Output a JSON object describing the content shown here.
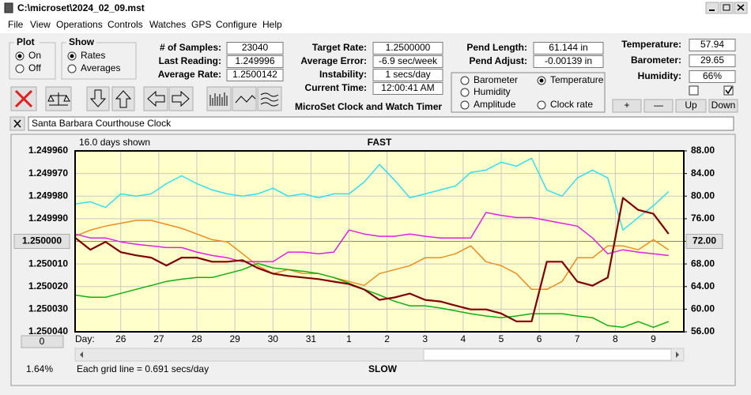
{
  "window": {
    "title": "C:\\microset\\2024_02_09.mst",
    "menu": [
      "File",
      "View",
      "Operations",
      "Controls",
      "Watches",
      "GPS",
      "Configure",
      "Help"
    ]
  },
  "controls": {
    "plot": {
      "title": "Plot",
      "options": [
        "On",
        "Off"
      ],
      "selected": 0
    },
    "show": {
      "title": "Show",
      "options": [
        "Rates",
        "Averages"
      ],
      "selected": 0
    },
    "fields": [
      {
        "label": "# of Samples:",
        "value": "23040"
      },
      {
        "label": "Last Reading:",
        "value": "1.249996"
      },
      {
        "label": "Average Rate:",
        "value": "1.2500142"
      },
      {
        "label": "Target Rate:",
        "value": "1.2500000"
      },
      {
        "label": "Average Error:",
        "value": "-6.9 sec/week"
      },
      {
        "label": "Instability:",
        "value": "1 secs/day"
      },
      {
        "label": "Current Time:",
        "value": "12:00:41 AM"
      },
      {
        "label": "Pend Length:",
        "value": "61.144 in"
      },
      {
        "label": "Pend Adjust:",
        "value": "-0.00139 in"
      },
      {
        "label": "Temperature:",
        "value": "57.94"
      },
      {
        "label": "Barometer:",
        "value": "29.65"
      },
      {
        "label": "Humidity:",
        "value": "66%"
      }
    ],
    "checkboxes": [
      false,
      true
    ],
    "buttons": [
      "+",
      "—",
      "Up",
      "Down"
    ],
    "app_title": "MicroSet Clock and Watch Timer",
    "clock_name": "Santa Barbara Courthouse Clock"
  },
  "chart_data": {
    "type": "line",
    "days_shown": "16.0 days shown",
    "top_label": "FAST",
    "bottom_label": "SLOW",
    "x_label": "Day:",
    "grid_note": "Each grid line = 0.691 secs/day",
    "percent": "1.64%",
    "offset_button": "0",
    "grid": true,
    "background": "#ffffcc",
    "xlim": [
      -1.2,
      14.8
    ],
    "xticks": [
      {
        "value": 0,
        "label": "26"
      },
      {
        "value": 1,
        "label": "27"
      },
      {
        "value": 2,
        "label": "28"
      },
      {
        "value": 3,
        "label": "29"
      },
      {
        "value": 4,
        "label": "30"
      },
      {
        "value": 5,
        "label": "31"
      },
      {
        "value": 6,
        "label": "1"
      },
      {
        "value": 7,
        "label": "2"
      },
      {
        "value": 8,
        "label": "3"
      },
      {
        "value": 9,
        "label": "4"
      },
      {
        "value": 10,
        "label": "5"
      },
      {
        "value": 11,
        "label": "6"
      },
      {
        "value": 12,
        "label": "7"
      },
      {
        "value": 13,
        "label": "8"
      },
      {
        "value": 14,
        "label": "9"
      }
    ],
    "ylim": [
      1.25004,
      1.24996
    ],
    "yticks": [
      {
        "value": 1.24996,
        "label": "1.249960"
      },
      {
        "value": 1.24997,
        "label": "1.249970"
      },
      {
        "value": 1.24998,
        "label": "1.249980"
      },
      {
        "value": 1.24999,
        "label": "1.249990"
      },
      {
        "value": 1.25,
        "label": "1.250000"
      },
      {
        "value": 1.25001,
        "label": "1.250010"
      },
      {
        "value": 1.25002,
        "label": "1.250020"
      },
      {
        "value": 1.25003,
        "label": "1.250030"
      },
      {
        "value": 1.25004,
        "label": "1.250040"
      }
    ],
    "y2lim": [
      56,
      88
    ],
    "y2ticks": [
      {
        "value": 88,
        "label": "88.00"
      },
      {
        "value": 84,
        "label": "84.00"
      },
      {
        "value": 80,
        "label": "80.00"
      },
      {
        "value": 76,
        "label": "76.00"
      },
      {
        "value": 72,
        "label": "72.00"
      },
      {
        "value": 68,
        "label": "68.00"
      },
      {
        "value": 64,
        "label": "64.00"
      },
      {
        "value": 60,
        "label": "60.00"
      },
      {
        "value": 56,
        "label": "56.00"
      }
    ],
    "x": [
      -1.2,
      -0.8,
      -0.4,
      0,
      0.4,
      0.8,
      1.2,
      1.6,
      2,
      2.4,
      2.8,
      3.2,
      3.6,
      4,
      4.4,
      4.8,
      5.2,
      5.6,
      6,
      6.4,
      6.8,
      7.2,
      7.6,
      8,
      8.4,
      8.8,
      9.2,
      9.6,
      10,
      10.4,
      10.8,
      11.2,
      11.6,
      12,
      12.4,
      12.8,
      13.2,
      13.6,
      14,
      14.4
    ],
    "series": [
      {
        "name": "Barometer",
        "color": "#f08c1c",
        "axis": "y2",
        "checked": false,
        "values": [
          72.9,
          74.0,
          74.7,
          75.2,
          75.7,
          75.7,
          75.0,
          74.3,
          73.3,
          72.3,
          71.9,
          69.8,
          67.7,
          66.3,
          67.0,
          66.3,
          66.3,
          65.6,
          64.9,
          64.2,
          66.3,
          67.0,
          67.7,
          69.1,
          69.1,
          69.8,
          71.2,
          68.4,
          67.7,
          66.3,
          63.5,
          63.5,
          64.9,
          69.1,
          69.1,
          71.2,
          71.2,
          70.5,
          72.3,
          70.5
        ]
      },
      {
        "name": "Temperature",
        "color": "#10b010",
        "axis": "y2",
        "checked": true,
        "values": [
          62.5,
          62.1,
          62.1,
          62.8,
          63.5,
          64.2,
          64.9,
          65.3,
          65.6,
          65.6,
          66.3,
          67.0,
          68.1,
          67.3,
          67.0,
          66.7,
          66.3,
          65.6,
          64.6,
          63.5,
          62.5,
          61.4,
          60.6,
          60.6,
          60.2,
          59.7,
          59.2,
          58.8,
          58.5,
          58.8,
          59.2,
          59.2,
          59.2,
          58.8,
          58.5,
          57.1,
          56.8,
          57.8,
          56.8,
          57.8
        ]
      },
      {
        "name": "Humidity",
        "color": "#e020e0",
        "axis": "y2",
        "checked": false,
        "values": [
          73.3,
          72.6,
          72.6,
          71.9,
          71.5,
          71.2,
          70.9,
          70.9,
          70.1,
          69.5,
          69.1,
          68.4,
          68.4,
          68.4,
          70.1,
          70.1,
          69.8,
          70.1,
          74.0,
          73.3,
          72.9,
          72.9,
          73.3,
          72.9,
          72.6,
          72.6,
          72.6,
          77.1,
          76.6,
          76.2,
          76.2,
          75.7,
          75.2,
          74.7,
          72.6,
          69.8,
          70.5,
          70.1,
          69.8,
          69.5
        ]
      },
      {
        "name": "Amplitude",
        "color": "#30e0f0",
        "axis": "y2",
        "checked": false,
        "values": [
          78.6,
          79.0,
          78.0,
          80.4,
          80.0,
          80.4,
          82.2,
          83.6,
          82.2,
          81.1,
          80.4,
          80.0,
          80.4,
          81.4,
          80.0,
          80.4,
          79.7,
          80.4,
          80.4,
          82.5,
          85.6,
          82.8,
          79.7,
          80.4,
          81.1,
          81.8,
          84.2,
          84.6,
          86.0,
          85.3,
          86.7,
          81.1,
          80.0,
          83.2,
          84.6,
          83.2,
          74.0,
          76.2,
          78.3,
          80.8
        ]
      },
      {
        "name": "Clock rate",
        "color": "#800000",
        "axis": "y",
        "checked": false,
        "values": [
          1.2499984,
          1.2500037,
          1.2500002,
          1.2500048,
          1.2500062,
          1.2500072,
          1.2500107,
          1.2500072,
          1.2500072,
          1.250009,
          1.250009,
          1.2500083,
          1.2500118,
          1.2500143,
          1.2500153,
          1.250016,
          1.2500167,
          1.2500178,
          1.2500189,
          1.2500213,
          1.2500259,
          1.2500248,
          1.2500231,
          1.2500259,
          1.2500266,
          1.2500284,
          1.2500301,
          1.2500301,
          1.2500319,
          1.2500354,
          1.2500354,
          1.250009,
          1.250009,
          1.2500178,
          1.2500196,
          1.250016,
          1.2499808,
          1.2499861,
          1.2499878,
          1.2499967
        ]
      }
    ]
  }
}
